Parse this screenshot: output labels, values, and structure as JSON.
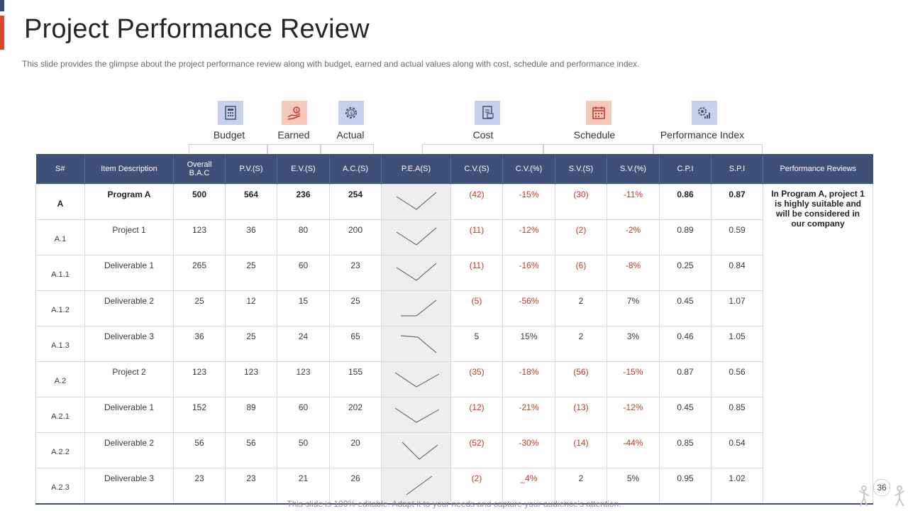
{
  "header": {
    "title": "Project Performance Review",
    "subtitle": "This slide provides  the glimpse about the project performance  review  along with budget,  earned and actual values  along with cost, schedule and performance  index."
  },
  "groups": {
    "budget": {
      "label": "Budget",
      "icon": "calculator-icon"
    },
    "earned": {
      "label": "Earned",
      "icon": "money-hand-icon"
    },
    "actual": {
      "label": "Actual",
      "icon": "gear-dollar-icon"
    },
    "cost": {
      "label": "Cost",
      "icon": "cost-document-icon"
    },
    "schedule": {
      "label": "Schedule",
      "icon": "calendar-icon"
    },
    "performance": {
      "label": "Performance Index",
      "icon": "gears-chart-icon"
    }
  },
  "table": {
    "columns": [
      "S#",
      "Item Description",
      "Overall B.A.C",
      "P.V.(S)",
      "E.V.(S)",
      "A.C.(S)",
      "P.E.A(S)",
      "C.V.(S)",
      "C.V.(%)",
      "S.V.(S)",
      "S.V.(%)",
      "C.P.I",
      "S.P.I",
      "Performance Reviews"
    ],
    "rows": [
      {
        "sno": "A",
        "desc": "Program A",
        "bac": "500",
        "pv": "564",
        "ev": "236",
        "ac": "254",
        "spark": "v",
        "cv": "(42)",
        "cvp": "-15%",
        "sv": "(30)",
        "svp": "-11%",
        "cpi": "0.86",
        "spi": "0.87"
      },
      {
        "sno": "A.1",
        "desc": "Project 1",
        "bac": "123",
        "pv": "36",
        "ev": "80",
        "ac": "200",
        "spark": "v",
        "cv": "(11)",
        "cvp": "-12%",
        "sv": "(2)",
        "svp": "-2%",
        "cpi": "0.89",
        "spi": "0.59"
      },
      {
        "sno": "A.1.1",
        "desc": "Deliverable  1",
        "bac": "265",
        "pv": "25",
        "ev": "60",
        "ac": "23",
        "spark": "v",
        "cv": "(11)",
        "cvp": "-16%",
        "sv": "(6)",
        "svp": "-8%",
        "cpi": "0.25",
        "spi": "0.84"
      },
      {
        "sno": "A.1.2",
        "desc": "Deliverable  2",
        "bac": "25",
        "pv": "12",
        "ev": "15",
        "ac": "25",
        "spark": "flat-up",
        "cv": "(5)",
        "cvp": "-56%",
        "sv": "2",
        "svp": "7%",
        "cpi": "0.45",
        "spi": "1.07"
      },
      {
        "sno": "A.1.3",
        "desc": "Deliverable  3",
        "bac": "36",
        "pv": "25",
        "ev": "24",
        "ac": "65",
        "spark": "flat-down",
        "cv": "5",
        "cvp": "15%",
        "sv": "2",
        "svp": "3%",
        "cpi": "0.46",
        "spi": "1.05"
      },
      {
        "sno": "A.2",
        "desc": "Project 2",
        "bac": "123",
        "pv": "123",
        "ev": "123",
        "ac": "155",
        "spark": "v-wide",
        "cv": "(35)",
        "cvp": "-18%",
        "sv": "(56)",
        "svp": "-15%",
        "cpi": "0.87",
        "spi": "0.56"
      },
      {
        "sno": "A.2.1",
        "desc": "Deliverable  1",
        "bac": "152",
        "pv": "89",
        "ev": "60",
        "ac": "202",
        "spark": "v-wide",
        "cv": "(12)",
        "cvp": "-21%",
        "sv": "(13)",
        "svp": "-12%",
        "cpi": "0.45",
        "spi": "0.85"
      },
      {
        "sno": "A.2.2",
        "desc": "Deliverable  2",
        "bac": "56",
        "pv": "56",
        "ev": "50",
        "ac": "20",
        "spark": "v-deep",
        "cv": "(52)",
        "cvp": "-30%",
        "sv": "(14)",
        "svp": "-44%",
        "cpi": "0.85",
        "spi": "0.54"
      },
      {
        "sno": "A.2.3",
        "desc": "Deliverable  3",
        "bac": "23",
        "pv": "23",
        "ev": "21",
        "ac": "26",
        "spark": "up",
        "cv": "(2)",
        "cvp": "_4%",
        "sv": "2",
        "svp": "5%",
        "cpi": "0.95",
        "spi": "1.02"
      }
    ],
    "review_text": "In Program A, project 1 is highly suitable and will be considered in our company"
  },
  "footer": {
    "note": "This slide is 100% editable. Adapt it to your needs and capture your audience's attention.",
    "page_number": "36"
  },
  "colors": {
    "header_bg": "#3f5078",
    "accent": "#d9462b",
    "negative": "#c0392b"
  }
}
